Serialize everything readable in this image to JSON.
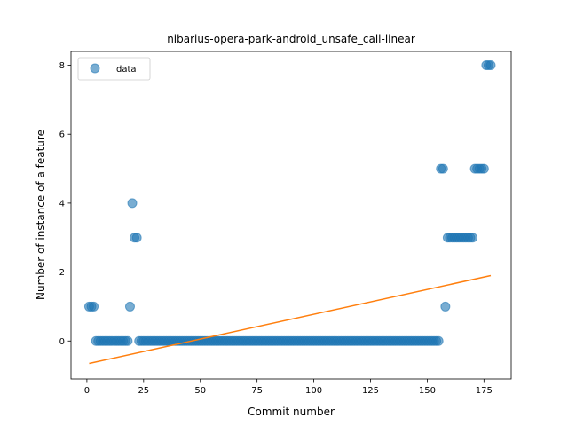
{
  "chart_data": {
    "type": "scatter",
    "title": "nibarius-opera-park-android_unsafe_call-linear",
    "xlabel": "Commit number",
    "ylabel": "Number of instance of a feature",
    "xlim": [
      -7,
      187
    ],
    "ylim": [
      -1.1,
      8.4
    ],
    "xticks": [
      0,
      25,
      50,
      75,
      100,
      125,
      150,
      175
    ],
    "yticks": [
      0,
      2,
      4,
      6,
      8
    ],
    "grid": false,
    "legend": {
      "placement": "top-left",
      "entries": [
        "data"
      ]
    },
    "colors": {
      "data": "#1f77b4",
      "fit": "#ff7f0e"
    },
    "series": [
      {
        "name": "data",
        "kind": "scatter",
        "points": [
          [
            1,
            1
          ],
          [
            2,
            1
          ],
          [
            3,
            1
          ],
          [
            4,
            0
          ],
          [
            5,
            0
          ],
          [
            6,
            0
          ],
          [
            7,
            0
          ],
          [
            8,
            0
          ],
          [
            9,
            0
          ],
          [
            10,
            0
          ],
          [
            11,
            0
          ],
          [
            12,
            0
          ],
          [
            13,
            0
          ],
          [
            14,
            0
          ],
          [
            15,
            0
          ],
          [
            16,
            0
          ],
          [
            17,
            0
          ],
          [
            18,
            0
          ],
          [
            19,
            1
          ],
          [
            20,
            4
          ],
          [
            21,
            3
          ],
          [
            22,
            3
          ],
          [
            23,
            0
          ],
          [
            24,
            0
          ],
          [
            25,
            0
          ],
          [
            26,
            0
          ],
          [
            27,
            0
          ],
          [
            28,
            0
          ],
          [
            29,
            0
          ],
          [
            30,
            0
          ],
          [
            31,
            0
          ],
          [
            32,
            0
          ],
          [
            33,
            0
          ],
          [
            34,
            0
          ],
          [
            35,
            0
          ],
          [
            36,
            0
          ],
          [
            37,
            0
          ],
          [
            38,
            0
          ],
          [
            39,
            0
          ],
          [
            40,
            0
          ],
          [
            41,
            0
          ],
          [
            42,
            0
          ],
          [
            43,
            0
          ],
          [
            44,
            0
          ],
          [
            45,
            0
          ],
          [
            46,
            0
          ],
          [
            47,
            0
          ],
          [
            48,
            0
          ],
          [
            49,
            0
          ],
          [
            50,
            0
          ],
          [
            51,
            0
          ],
          [
            52,
            0
          ],
          [
            53,
            0
          ],
          [
            54,
            0
          ],
          [
            55,
            0
          ],
          [
            56,
            0
          ],
          [
            57,
            0
          ],
          [
            58,
            0
          ],
          [
            59,
            0
          ],
          [
            60,
            0
          ],
          [
            61,
            0
          ],
          [
            62,
            0
          ],
          [
            63,
            0
          ],
          [
            64,
            0
          ],
          [
            65,
            0
          ],
          [
            66,
            0
          ],
          [
            67,
            0
          ],
          [
            68,
            0
          ],
          [
            69,
            0
          ],
          [
            70,
            0
          ],
          [
            71,
            0
          ],
          [
            72,
            0
          ],
          [
            73,
            0
          ],
          [
            74,
            0
          ],
          [
            75,
            0
          ],
          [
            76,
            0
          ],
          [
            77,
            0
          ],
          [
            78,
            0
          ],
          [
            79,
            0
          ],
          [
            80,
            0
          ],
          [
            81,
            0
          ],
          [
            82,
            0
          ],
          [
            83,
            0
          ],
          [
            84,
            0
          ],
          [
            85,
            0
          ],
          [
            86,
            0
          ],
          [
            87,
            0
          ],
          [
            88,
            0
          ],
          [
            89,
            0
          ],
          [
            90,
            0
          ],
          [
            91,
            0
          ],
          [
            92,
            0
          ],
          [
            93,
            0
          ],
          [
            94,
            0
          ],
          [
            95,
            0
          ],
          [
            96,
            0
          ],
          [
            97,
            0
          ],
          [
            98,
            0
          ],
          [
            99,
            0
          ],
          [
            100,
            0
          ],
          [
            101,
            0
          ],
          [
            102,
            0
          ],
          [
            103,
            0
          ],
          [
            104,
            0
          ],
          [
            105,
            0
          ],
          [
            106,
            0
          ],
          [
            107,
            0
          ],
          [
            108,
            0
          ],
          [
            109,
            0
          ],
          [
            110,
            0
          ],
          [
            111,
            0
          ],
          [
            112,
            0
          ],
          [
            113,
            0
          ],
          [
            114,
            0
          ],
          [
            115,
            0
          ],
          [
            116,
            0
          ],
          [
            117,
            0
          ],
          [
            118,
            0
          ],
          [
            119,
            0
          ],
          [
            120,
            0
          ],
          [
            121,
            0
          ],
          [
            122,
            0
          ],
          [
            123,
            0
          ],
          [
            124,
            0
          ],
          [
            125,
            0
          ],
          [
            126,
            0
          ],
          [
            127,
            0
          ],
          [
            128,
            0
          ],
          [
            129,
            0
          ],
          [
            130,
            0
          ],
          [
            131,
            0
          ],
          [
            132,
            0
          ],
          [
            133,
            0
          ],
          [
            134,
            0
          ],
          [
            135,
            0
          ],
          [
            136,
            0
          ],
          [
            137,
            0
          ],
          [
            138,
            0
          ],
          [
            139,
            0
          ],
          [
            140,
            0
          ],
          [
            141,
            0
          ],
          [
            142,
            0
          ],
          [
            143,
            0
          ],
          [
            144,
            0
          ],
          [
            145,
            0
          ],
          [
            146,
            0
          ],
          [
            147,
            0
          ],
          [
            148,
            0
          ],
          [
            149,
            0
          ],
          [
            150,
            0
          ],
          [
            151,
            0
          ],
          [
            152,
            0
          ],
          [
            153,
            0
          ],
          [
            154,
            0
          ],
          [
            155,
            0
          ],
          [
            156,
            5
          ],
          [
            157,
            5
          ],
          [
            158,
            1
          ],
          [
            159,
            3
          ],
          [
            160,
            3
          ],
          [
            161,
            3
          ],
          [
            162,
            3
          ],
          [
            163,
            3
          ],
          [
            164,
            3
          ],
          [
            165,
            3
          ],
          [
            166,
            3
          ],
          [
            167,
            3
          ],
          [
            168,
            3
          ],
          [
            169,
            3
          ],
          [
            170,
            3
          ],
          [
            171,
            5
          ],
          [
            172,
            5
          ],
          [
            173,
            5
          ],
          [
            174,
            5
          ],
          [
            175,
            5
          ],
          [
            176,
            8
          ],
          [
            177,
            8
          ],
          [
            178,
            8
          ]
        ]
      },
      {
        "name": "",
        "kind": "line",
        "points": [
          [
            1,
            -0.65
          ],
          [
            178,
            1.9
          ]
        ]
      }
    ]
  }
}
